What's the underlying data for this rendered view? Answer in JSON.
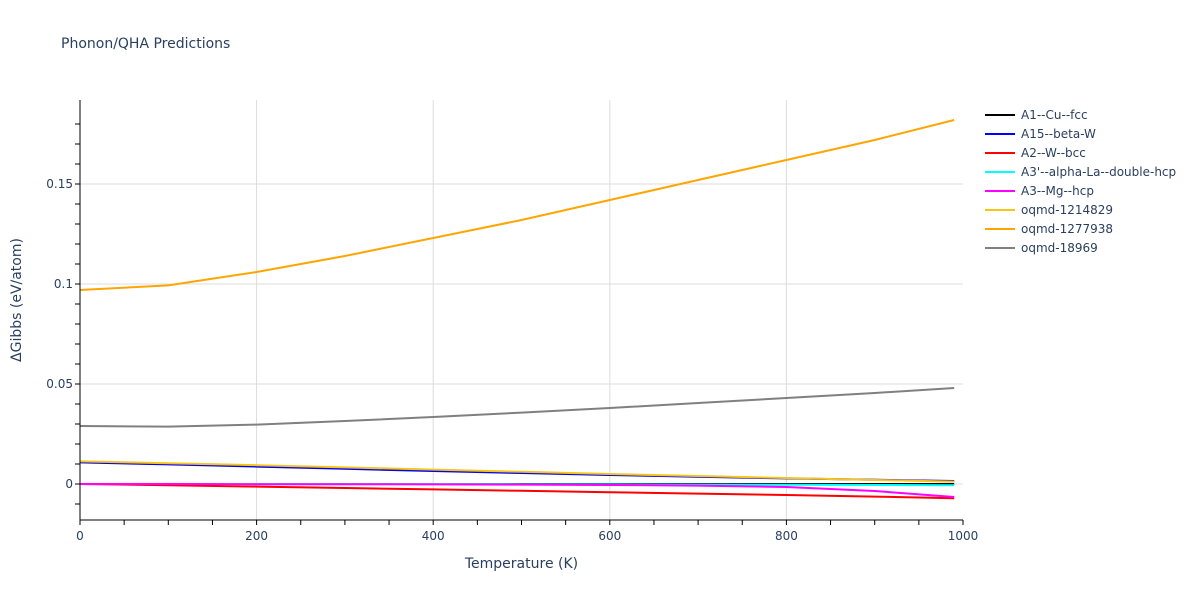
{
  "title": "Phonon/QHA Predictions",
  "chart_data": {
    "type": "line",
    "title": "Phonon/QHA Predictions",
    "xlabel": "Temperature (K)",
    "ylabel": "ΔGibbs (eV/atom)",
    "xlim": [
      0,
      1000
    ],
    "ylim": [
      -0.018,
      0.192
    ],
    "grid": true,
    "legend_position": "right",
    "x_ticks": [
      0,
      200,
      400,
      600,
      800,
      1000
    ],
    "y_ticks": [
      0,
      0.05,
      0.1,
      0.15
    ],
    "x_tick_labels": [
      "0",
      "200",
      "400",
      "600",
      "800",
      "1000"
    ],
    "y_tick_labels": [
      "0",
      "0.05",
      "0.1",
      "0.15"
    ],
    "x": [
      0,
      100,
      200,
      300,
      400,
      500,
      600,
      700,
      800,
      900,
      990
    ],
    "series": [
      {
        "name": "A1--Cu--fcc",
        "color": "#000000",
        "values": [
          0.0,
          0.0,
          0.0,
          0.0,
          0.0,
          0.0,
          0.0,
          0.0,
          0.0,
          0.0,
          0.0
        ]
      },
      {
        "name": "A15--beta-W",
        "color": "#0000ff",
        "values": [
          0.0108,
          0.0098,
          0.0087,
          0.0076,
          0.0065,
          0.0055,
          0.0045,
          0.0036,
          0.0028,
          0.0021,
          0.0015
        ]
      },
      {
        "name": "A2--W--bcc",
        "color": "#ff0000",
        "values": [
          0.0,
          -0.0006,
          -0.0013,
          -0.002,
          -0.0027,
          -0.0034,
          -0.0041,
          -0.0048,
          -0.0055,
          -0.0063,
          -0.0071
        ]
      },
      {
        "name": "A3'--alpha-La--double-hcp",
        "color": "#00ffff",
        "values": [
          0.0,
          0.0,
          0.0,
          0.0,
          0.0,
          -0.0001,
          -0.0002,
          -0.0003,
          -0.0004,
          -0.0005,
          -0.0006
        ]
      },
      {
        "name": "A3--Mg--hcp",
        "color": "#ff00ff",
        "values": [
          0.0,
          0.0,
          -0.0001,
          -0.0001,
          -0.0002,
          -0.0003,
          -0.0005,
          -0.0008,
          -0.0015,
          -0.0035,
          -0.0065
        ]
      },
      {
        "name": "oqmd-1214829",
        "color": "#f5c518",
        "values": [
          0.0113,
          0.0104,
          0.0094,
          0.0083,
          0.0072,
          0.0061,
          0.005,
          0.004,
          0.003,
          0.002,
          0.0012
        ]
      },
      {
        "name": "oqmd-1277938",
        "color": "#ffa500",
        "values": [
          0.097,
          0.0993,
          0.106,
          0.114,
          0.123,
          0.132,
          0.142,
          0.152,
          0.162,
          0.172,
          0.182
        ]
      },
      {
        "name": "oqmd-18969",
        "color": "#808080",
        "values": [
          0.029,
          0.0287,
          0.0297,
          0.0315,
          0.0335,
          0.0357,
          0.038,
          0.0405,
          0.043,
          0.0455,
          0.048
        ]
      }
    ]
  }
}
